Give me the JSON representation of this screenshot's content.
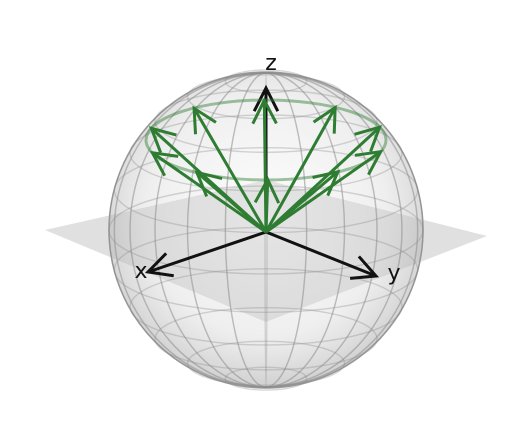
{
  "axes": {
    "x_label": "x",
    "y_label": "y",
    "z_label": "z"
  },
  "colors": {
    "background": "#ffffff",
    "sphere_wire": "#8c8c8c",
    "sphere_fill": "#d9d9d9",
    "equator_plane": "#d6d6d6",
    "axis": "#111111",
    "vectors": "#2e7d32",
    "cone_ring": "#2e7d32"
  },
  "vectors": {
    "count": 10,
    "polar_angle_deg": 45
  }
}
